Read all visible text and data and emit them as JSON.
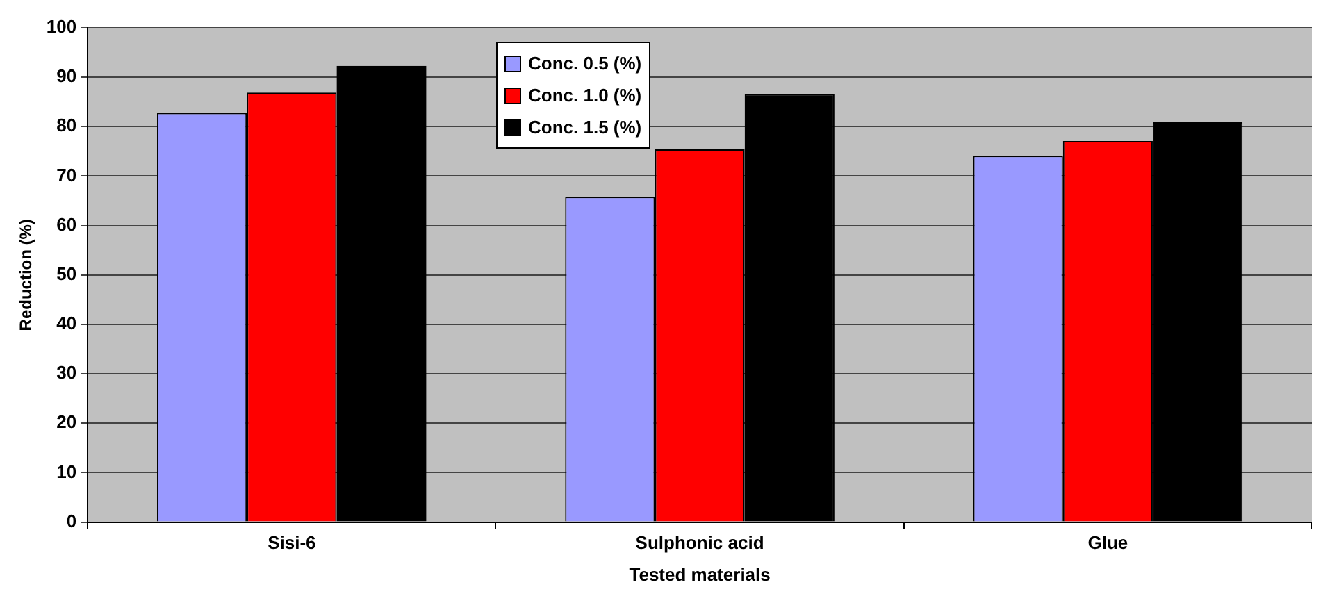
{
  "chart_data": {
    "type": "bar",
    "xlabel": "Tested materials",
    "ylabel": "Reduction (%)",
    "categories": [
      "Sisi-6",
      "Sulphonic acid",
      "Glue"
    ],
    "series": [
      {
        "name": "Conc. 0.5 (%)",
        "color": "#9999ff",
        "values": [
          82.8,
          65.8,
          74.1
        ]
      },
      {
        "name": "Conc. 1.0 (%)",
        "color": "#ff0000",
        "values": [
          86.9,
          75.4,
          77.1
        ]
      },
      {
        "name": "Conc. 1.5 (%)",
        "color": "#000000",
        "values": [
          92.3,
          86.6,
          80.9
        ]
      }
    ],
    "ylim": [
      0,
      100
    ],
    "yticks": [
      0,
      10,
      20,
      30,
      40,
      50,
      60,
      70,
      80,
      90,
      100
    ],
    "grid": "y",
    "legend": "top"
  }
}
